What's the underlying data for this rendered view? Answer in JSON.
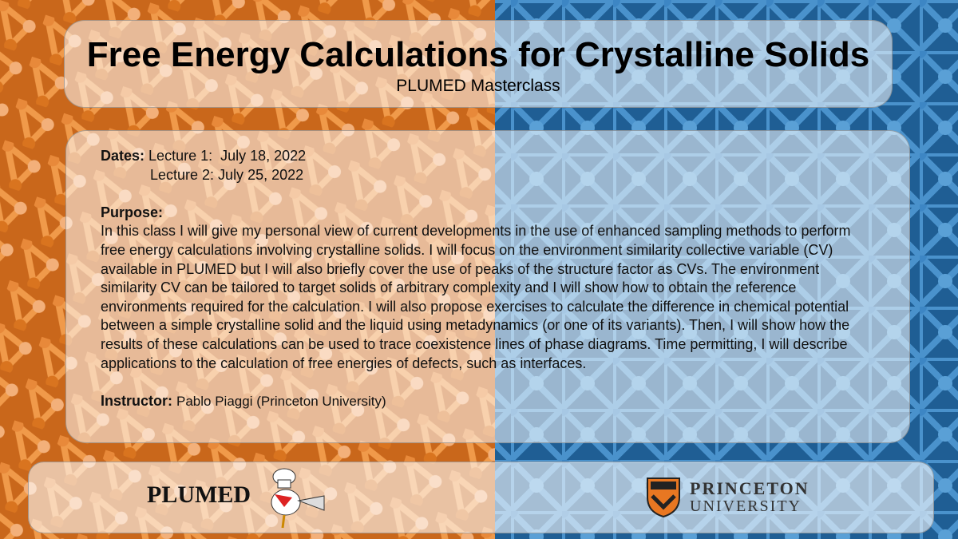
{
  "header": {
    "title": "Free Energy Calculations for Crystalline Solids",
    "subtitle": "PLUMED Masterclass"
  },
  "details": {
    "dates_label": "Dates:",
    "dates": [
      "Lecture 1:  July 18, 2022",
      "Lecture 2: July 25, 2022"
    ],
    "purpose_label": "Purpose:",
    "purpose": "In this class I will give my personal view of current developments in the use of enhanced sampling methods to perform free energy calculations involving crystalline solids. I will focus on the environment similarity collective variable (CV) available in PLUMED but I will also briefly cover the use of peaks of the structure factor as CVs. The environment similarity CV can be tailored to target solids of arbitrary complexity and I will show how to obtain the reference environments required for the calculation. I will also propose exercises to calculate the difference in chemical potential between a simple crystalline solid and the liquid using metadynamics (or one of its variants). Then, I will show how the results of these calculations can be used to trace coexistence lines of phase diagrams. Time permitting, I will describe applications to the calculation of free energies of defects, such as interfaces.",
    "instructor_label": "Instructor:",
    "instructor": "Pablo Piaggi (Princeton University)"
  },
  "footer": {
    "plumed_logo": "PLUMED",
    "princeton_logo": [
      "PRINCETON",
      "UNIVERSITY"
    ]
  }
}
